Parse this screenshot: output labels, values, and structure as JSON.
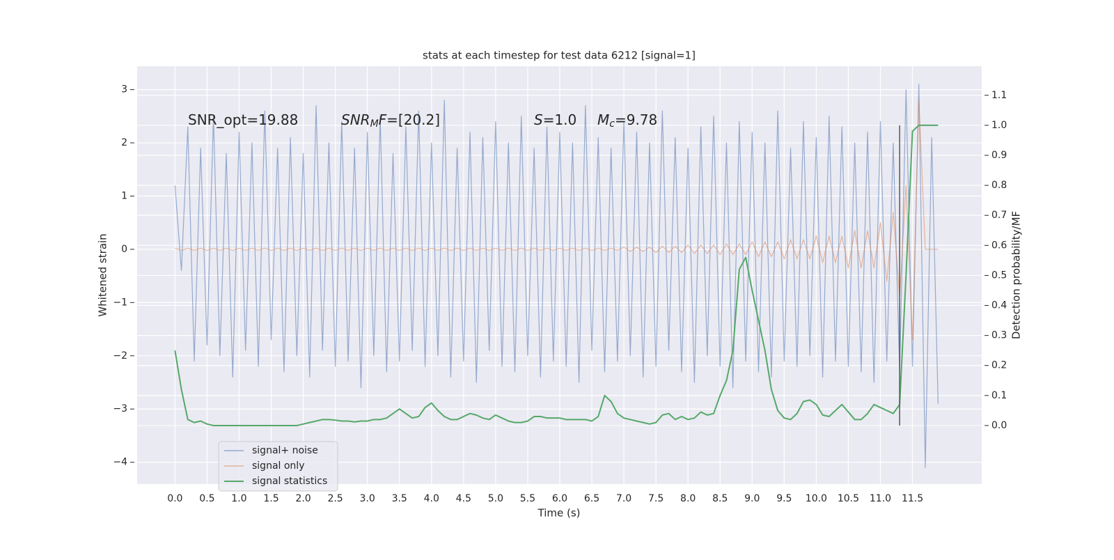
{
  "chart_data": {
    "type": "line",
    "title": "stats at each timestep for test data 6212 [signal=1]",
    "xlabel": "Time (s)",
    "ylabel": "Whitened strain",
    "y2label": "Detection probability/MF",
    "xlim": [
      -0.59,
      12.58
    ],
    "ylim": [
      -4.41,
      3.44
    ],
    "y2lim": [
      -0.195,
      1.197
    ],
    "xticks": [
      {
        "value": 0,
        "label": "0.0"
      },
      0.5,
      {
        "value": 1,
        "label": "1.0"
      },
      1.5,
      {
        "value": 2,
        "label": "2.0"
      },
      2.5,
      {
        "value": 3,
        "label": "3.0"
      },
      3.5,
      {
        "value": 4,
        "label": "4.0"
      },
      4.5,
      {
        "value": 5,
        "label": "5.0"
      },
      5.5,
      {
        "value": 6,
        "label": "6.0"
      },
      6.5,
      {
        "value": 7,
        "label": "7.0"
      },
      7.5,
      {
        "value": 8,
        "label": "8.0"
      },
      8.5,
      {
        "value": 9,
        "label": "9.0"
      },
      9.5,
      {
        "value": 10,
        "label": "10.0"
      },
      10.5,
      {
        "value": 11,
        "label": "11.0"
      },
      11.5
    ],
    "yticks": [
      {
        "value": -4,
        "label": "−4"
      },
      {
        "value": -3,
        "label": "−3"
      },
      {
        "value": -2,
        "label": "−2"
      },
      {
        "value": -1,
        "label": "−1"
      },
      0,
      1,
      2,
      3
    ],
    "y2ticks": [
      {
        "value": 0,
        "label": "0.0"
      },
      0.1,
      0.2,
      0.3,
      0.4,
      0.5,
      0.6,
      0.7,
      0.8,
      0.9,
      {
        "value": 1,
        "label": "1.0"
      },
      1.1
    ],
    "grid": true,
    "x": [
      0,
      0.1,
      0.2,
      0.3,
      0.4,
      0.5,
      0.6,
      0.7,
      0.8,
      0.9,
      1,
      1.1,
      1.2,
      1.3,
      1.4,
      1.5,
      1.6,
      1.7,
      1.8,
      1.9,
      2,
      2.1,
      2.2,
      2.3,
      2.4,
      2.5,
      2.6,
      2.7,
      2.8,
      2.9,
      3,
      3.1,
      3.2,
      3.3,
      3.4,
      3.5,
      3.6,
      3.7,
      3.8,
      3.9,
      4,
      4.1,
      4.2,
      4.3,
      4.4,
      4.5,
      4.6,
      4.7,
      4.8,
      4.9,
      5,
      5.1,
      5.2,
      5.3,
      5.4,
      5.5,
      5.6,
      5.7,
      5.8,
      5.9,
      6,
      6.1,
      6.2,
      6.3,
      6.4,
      6.5,
      6.6,
      6.7,
      6.8,
      6.9,
      7,
      7.1,
      7.2,
      7.3,
      7.4,
      7.5,
      7.6,
      7.7,
      7.8,
      7.9,
      8,
      8.1,
      8.2,
      8.3,
      8.4,
      8.5,
      8.6,
      8.7,
      8.8,
      8.9,
      9,
      9.1,
      9.2,
      9.3,
      9.4,
      9.5,
      9.6,
      9.7,
      9.8,
      9.9,
      10,
      10.1,
      10.2,
      10.3,
      10.4,
      10.5,
      10.6,
      10.7,
      10.8,
      10.9,
      11,
      11.1,
      11.2,
      11.3,
      11.4,
      11.5,
      11.6,
      11.7,
      11.8,
      11.9
    ],
    "series": [
      {
        "name": "signal+ noise",
        "color": "#4c72b0",
        "axis": "y",
        "values": [
          1.2,
          -0.4,
          2.3,
          -2.1,
          1.9,
          -1.8,
          2.5,
          -2.0,
          1.8,
          -2.4,
          2.2,
          -1.9,
          2.0,
          -2.2,
          2.6,
          -1.7,
          1.9,
          -2.3,
          2.1,
          -2.0,
          1.8,
          -2.4,
          2.7,
          -1.9,
          2.0,
          -2.2,
          2.4,
          -2.1,
          1.9,
          -2.6,
          2.2,
          -2.0,
          2.5,
          -2.3,
          1.8,
          -2.1,
          2.3,
          -1.9,
          2.6,
          -2.2,
          2.0,
          -2.0,
          2.8,
          -2.4,
          1.9,
          -2.1,
          2.2,
          -2.5,
          2.1,
          -1.9,
          2.4,
          -2.2,
          2.0,
          -2.3,
          2.5,
          -2.0,
          1.9,
          -2.4,
          2.3,
          -2.1,
          2.2,
          -2.2,
          2.0,
          -2.5,
          2.7,
          -1.9,
          2.1,
          -2.3,
          1.9,
          -2.1,
          2.4,
          -2.0,
          2.2,
          -2.4,
          2.0,
          -2.2,
          2.6,
          -1.9,
          2.1,
          -2.3,
          1.9,
          -2.5,
          2.3,
          -2.0,
          2.5,
          -2.2,
          2.0,
          -2.6,
          2.4,
          -2.1,
          2.2,
          -2.3,
          2.0,
          -2.4,
          2.6,
          -2.1,
          1.9,
          -2.2,
          2.4,
          -2.0,
          2.1,
          -2.4,
          2.5,
          -2.1,
          2.3,
          -2.2,
          2.0,
          -2.3,
          2.2,
          -2.5,
          2.4,
          -2.1,
          2.0,
          -2.3,
          3.0,
          -2.2,
          3.1,
          -4.1,
          2.1,
          -2.9
        ]
      },
      {
        "name": "signal only",
        "color": "#dd8452",
        "axis": "y",
        "values": [
          0.02,
          -0.02,
          0.02,
          -0.02,
          0.02,
          -0.02,
          0.02,
          -0.02,
          0.02,
          -0.02,
          0.02,
          -0.02,
          0.02,
          -0.02,
          0.02,
          -0.02,
          0.02,
          -0.02,
          0.02,
          -0.02,
          0.02,
          -0.02,
          0.02,
          -0.02,
          0.02,
          -0.02,
          0.02,
          -0.02,
          0.02,
          -0.02,
          0.02,
          -0.02,
          0.02,
          -0.02,
          0.02,
          -0.02,
          0.02,
          -0.02,
          0.02,
          -0.02,
          0.02,
          -0.02,
          0.02,
          -0.02,
          0.02,
          -0.02,
          0.02,
          -0.02,
          0.02,
          -0.02,
          0.02,
          -0.02,
          0.02,
          -0.02,
          0.02,
          -0.02,
          0.02,
          -0.02,
          0.02,
          -0.02,
          0.02,
          -0.02,
          0.02,
          -0.02,
          0.02,
          -0.02,
          0.02,
          -0.02,
          0.02,
          -0.02,
          0.04,
          -0.04,
          0.04,
          -0.04,
          0.04,
          -0.06,
          0.06,
          -0.06,
          0.06,
          -0.06,
          0.08,
          -0.08,
          0.08,
          -0.08,
          0.08,
          -0.1,
          0.1,
          -0.1,
          0.1,
          -0.1,
          0.14,
          -0.14,
          0.14,
          -0.14,
          0.14,
          -0.18,
          0.18,
          -0.18,
          0.18,
          -0.18,
          0.25,
          -0.25,
          0.25,
          -0.25,
          0.25,
          -0.35,
          0.35,
          -0.35,
          0.35,
          -0.35,
          0.5,
          -0.6,
          0.7,
          -0.9,
          1.2,
          -1.7,
          2.8,
          0,
          0,
          0
        ]
      },
      {
        "name": "signal statistics",
        "color": "#55a868",
        "axis": "y2",
        "values": [
          0.25,
          0.12,
          0.02,
          0.01,
          0.015,
          0.005,
          0,
          0,
          0,
          0,
          0,
          0,
          0,
          0,
          0,
          0,
          0,
          0,
          0,
          0,
          0.005,
          0.01,
          0.015,
          0.02,
          0.02,
          0.018,
          0.015,
          0.015,
          0.012,
          0.015,
          0.015,
          0.02,
          0.02,
          0.025,
          0.04,
          0.055,
          0.04,
          0.025,
          0.03,
          0.06,
          0.075,
          0.05,
          0.03,
          0.02,
          0.02,
          0.03,
          0.04,
          0.035,
          0.025,
          0.02,
          0.035,
          0.025,
          0.015,
          0.01,
          0.01,
          0.015,
          0.03,
          0.03,
          0.025,
          0.025,
          0.025,
          0.02,
          0.02,
          0.02,
          0.02,
          0.015,
          0.03,
          0.1,
          0.08,
          0.04,
          0.025,
          0.02,
          0.015,
          0.01,
          0.005,
          0.01,
          0.035,
          0.04,
          0.02,
          0.03,
          0.02,
          0.025,
          0.045,
          0.035,
          0.04,
          0.1,
          0.15,
          0.25,
          0.52,
          0.56,
          0.45,
          0.35,
          0.25,
          0.12,
          0.05,
          0.025,
          0.02,
          0.04,
          0.08,
          0.085,
          0.07,
          0.035,
          0.03,
          0.05,
          0.07,
          0.045,
          0.02,
          0.02,
          0.04,
          0.07,
          0.06,
          0.05,
          0.04,
          0.07,
          0.5,
          0.98,
          1,
          1,
          1,
          1
        ]
      }
    ],
    "vline": {
      "x": 11.3,
      "ymin": 0,
      "ymax": 1,
      "axis": "y2",
      "color": "#555555"
    },
    "annotations": [
      {
        "segments": [
          {
            "text": "SNR_opt=19.88"
          }
        ]
      },
      {
        "segments": [
          {
            "text": "SNR",
            "italic": true
          },
          {
            "text": "M",
            "italic": true,
            "sub": true
          },
          {
            "text": "F",
            "italic": true
          },
          {
            "text": "=[20.2]"
          }
        ]
      },
      {
        "segments": [
          {
            "text": "S",
            "italic": true
          },
          {
            "text": "=1.0"
          }
        ]
      },
      {
        "segments": [
          {
            "text": "M",
            "italic": true
          },
          {
            "text": "c",
            "italic": true,
            "sub": true
          },
          {
            "text": "=9.78"
          }
        ]
      }
    ]
  }
}
